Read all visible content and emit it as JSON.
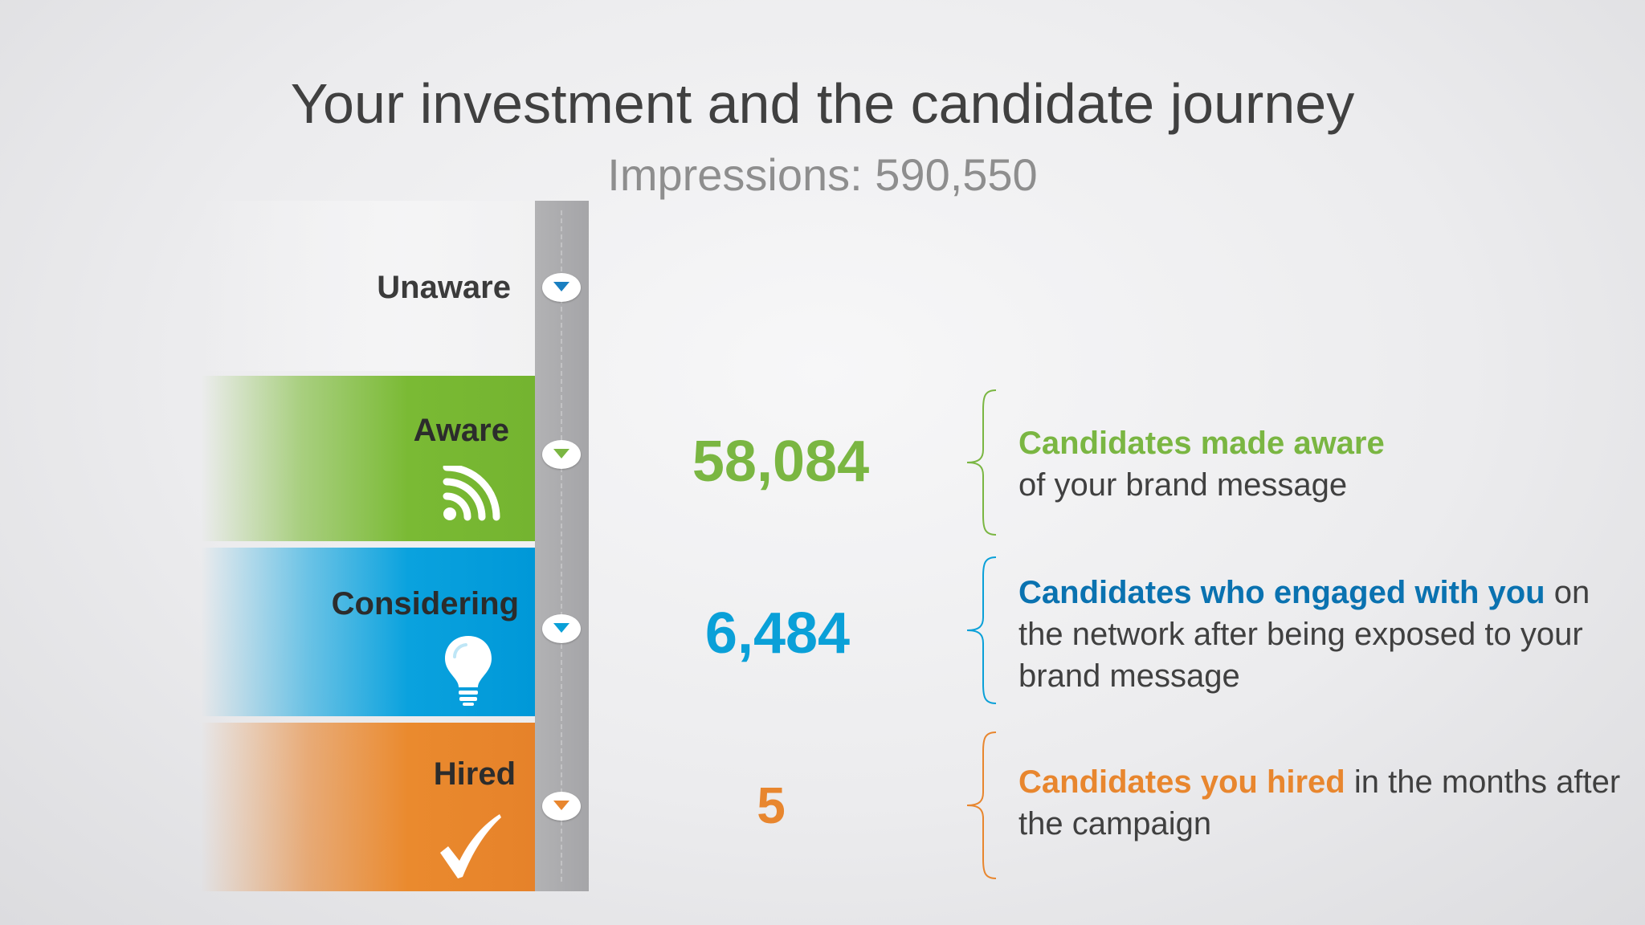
{
  "header": {
    "title": "Your investment and the candidate journey",
    "subtitle": "Impressions: 590,550"
  },
  "stages": {
    "unaware": {
      "label": "Unaware"
    },
    "aware": {
      "label": "Aware",
      "icon": "wifi-signal-icon",
      "color": "#7ab642"
    },
    "considering": {
      "label": "Considering",
      "icon": "lightbulb-icon",
      "color": "#0aa0d8"
    },
    "hired": {
      "label": "Hired",
      "icon": "checkmark-icon",
      "color": "#e8862e"
    }
  },
  "metrics": {
    "aware": "58,084",
    "considering": "6,484",
    "hired": "5"
  },
  "descriptions": {
    "aware": {
      "highlight": "Candidates made aware",
      "rest": "of your brand message"
    },
    "considering": {
      "highlight": "Candidates who engaged with you",
      "rest": " on the network after being exposed to your brand message"
    },
    "hired": {
      "highlight": "Candidates you hired",
      "rest": " in the months after the campaign"
    }
  }
}
